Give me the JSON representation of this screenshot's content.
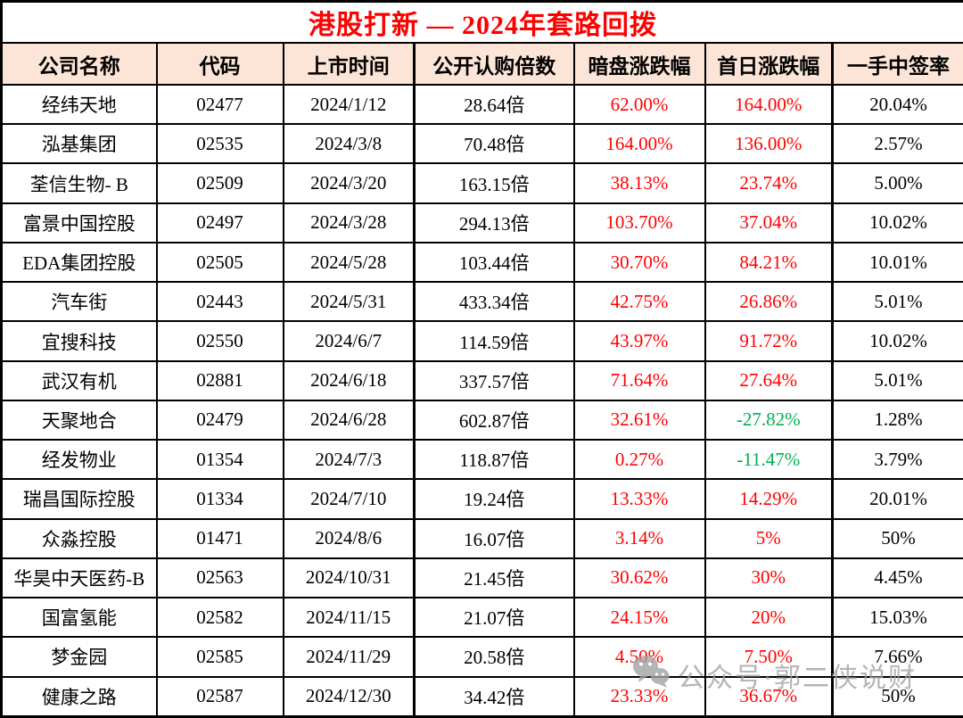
{
  "title": "港股打新 — 2024年套路回拨",
  "watermark": {
    "text": "公众号·郭二侠说财",
    "icon": "wechat-icon"
  },
  "colors": {
    "title_red": "#FF0000",
    "up_red": "#FF0000",
    "down_green": "#00B050",
    "header_bg": "#FCE4D6",
    "border": "#000000",
    "watermark_gray": "#A3A3A3"
  },
  "table": {
    "columns": [
      "公司名称",
      "代码",
      "上市时间",
      "公开认购倍数",
      "暗盘涨跌幅",
      "首日涨跌幅",
      "一手中签率"
    ],
    "rows": [
      {
        "company": "经纬天地",
        "code": "02477",
        "listing_date": "2024/1/12",
        "subscription_multiple": "28.64倍",
        "dark_pool_change": {
          "value": "62.00%",
          "color": "red"
        },
        "first_day_change": {
          "value": "164.00%",
          "color": "red"
        },
        "lot_win_rate": "20.04%"
      },
      {
        "company": "泓基集团",
        "code": "02535",
        "listing_date": "2024/3/8",
        "subscription_multiple": "70.48倍",
        "dark_pool_change": {
          "value": "164.00%",
          "color": "red"
        },
        "first_day_change": {
          "value": "136.00%",
          "color": "red"
        },
        "lot_win_rate": "2.57%"
      },
      {
        "company": "荃信生物- B",
        "code": "02509",
        "listing_date": "2024/3/20",
        "subscription_multiple": "163.15倍",
        "dark_pool_change": {
          "value": "38.13%",
          "color": "red"
        },
        "first_day_change": {
          "value": "23.74%",
          "color": "red"
        },
        "lot_win_rate": "5.00%"
      },
      {
        "company": "富景中国控股",
        "code": "02497",
        "listing_date": "2024/3/28",
        "subscription_multiple": "294.13倍",
        "dark_pool_change": {
          "value": "103.70%",
          "color": "red"
        },
        "first_day_change": {
          "value": "37.04%",
          "color": "red"
        },
        "lot_win_rate": "10.02%"
      },
      {
        "company": "EDA集团控股",
        "code": "02505",
        "listing_date": "2024/5/28",
        "subscription_multiple": "103.44倍",
        "dark_pool_change": {
          "value": "30.70%",
          "color": "red"
        },
        "first_day_change": {
          "value": "84.21%",
          "color": "red"
        },
        "lot_win_rate": "10.01%"
      },
      {
        "company": "汽车街",
        "code": "02443",
        "listing_date": "2024/5/31",
        "subscription_multiple": "433.34倍",
        "dark_pool_change": {
          "value": "42.75%",
          "color": "red"
        },
        "first_day_change": {
          "value": "26.86%",
          "color": "red"
        },
        "lot_win_rate": "5.01%"
      },
      {
        "company": "宜搜科技",
        "code": "02550",
        "listing_date": "2024/6/7",
        "subscription_multiple": "114.59倍",
        "dark_pool_change": {
          "value": "43.97%",
          "color": "red"
        },
        "first_day_change": {
          "value": "91.72%",
          "color": "red"
        },
        "lot_win_rate": "10.02%"
      },
      {
        "company": "武汉有机",
        "code": "02881",
        "listing_date": "2024/6/18",
        "subscription_multiple": "337.57倍",
        "dark_pool_change": {
          "value": "71.64%",
          "color": "red"
        },
        "first_day_change": {
          "value": "27.64%",
          "color": "red"
        },
        "lot_win_rate": "5.01%"
      },
      {
        "company": "天聚地合",
        "code": "02479",
        "listing_date": "2024/6/28",
        "subscription_multiple": "602.87倍",
        "dark_pool_change": {
          "value": "32.61%",
          "color": "red"
        },
        "first_day_change": {
          "value": "-27.82%",
          "color": "green"
        },
        "lot_win_rate": "1.28%"
      },
      {
        "company": "经发物业",
        "code": "01354",
        "listing_date": "2024/7/3",
        "subscription_multiple": "118.87倍",
        "dark_pool_change": {
          "value": "0.27%",
          "color": "red"
        },
        "first_day_change": {
          "value": "-11.47%",
          "color": "green"
        },
        "lot_win_rate": "3.79%"
      },
      {
        "company": "瑞昌国际控股",
        "code": "01334",
        "listing_date": "2024/7/10",
        "subscription_multiple": "19.24倍",
        "dark_pool_change": {
          "value": "13.33%",
          "color": "red"
        },
        "first_day_change": {
          "value": "14.29%",
          "color": "red"
        },
        "lot_win_rate": "20.01%"
      },
      {
        "company": "众淼控股",
        "code": "01471",
        "listing_date": "2024/8/6",
        "subscription_multiple": "16.07倍",
        "dark_pool_change": {
          "value": "3.14%",
          "color": "red"
        },
        "first_day_change": {
          "value": "5%",
          "color": "red"
        },
        "lot_win_rate": "50%"
      },
      {
        "company": "华昊中天医药-B",
        "code": "02563",
        "listing_date": "2024/10/31",
        "subscription_multiple": "21.45倍",
        "dark_pool_change": {
          "value": "30.62%",
          "color": "red"
        },
        "first_day_change": {
          "value": "30%",
          "color": "red"
        },
        "lot_win_rate": "4.45%"
      },
      {
        "company": "国富氢能",
        "code": "02582",
        "listing_date": "2024/11/15",
        "subscription_multiple": "21.07倍",
        "dark_pool_change": {
          "value": "24.15%",
          "color": "red"
        },
        "first_day_change": {
          "value": "20%",
          "color": "red"
        },
        "lot_win_rate": "15.03%"
      },
      {
        "company": "梦金园",
        "code": "02585",
        "listing_date": "2024/11/29",
        "subscription_multiple": "20.58倍",
        "dark_pool_change": {
          "value": "4.50%",
          "color": "red"
        },
        "first_day_change": {
          "value": "7.50%",
          "color": "red"
        },
        "lot_win_rate": "7.66%"
      },
      {
        "company": "健康之路",
        "code": "02587",
        "listing_date": "2024/12/30",
        "subscription_multiple": "34.42倍",
        "dark_pool_change": {
          "value": "23.33%",
          "color": "red"
        },
        "first_day_change": {
          "value": "36.67%",
          "color": "red"
        },
        "lot_win_rate": "50%"
      }
    ]
  }
}
